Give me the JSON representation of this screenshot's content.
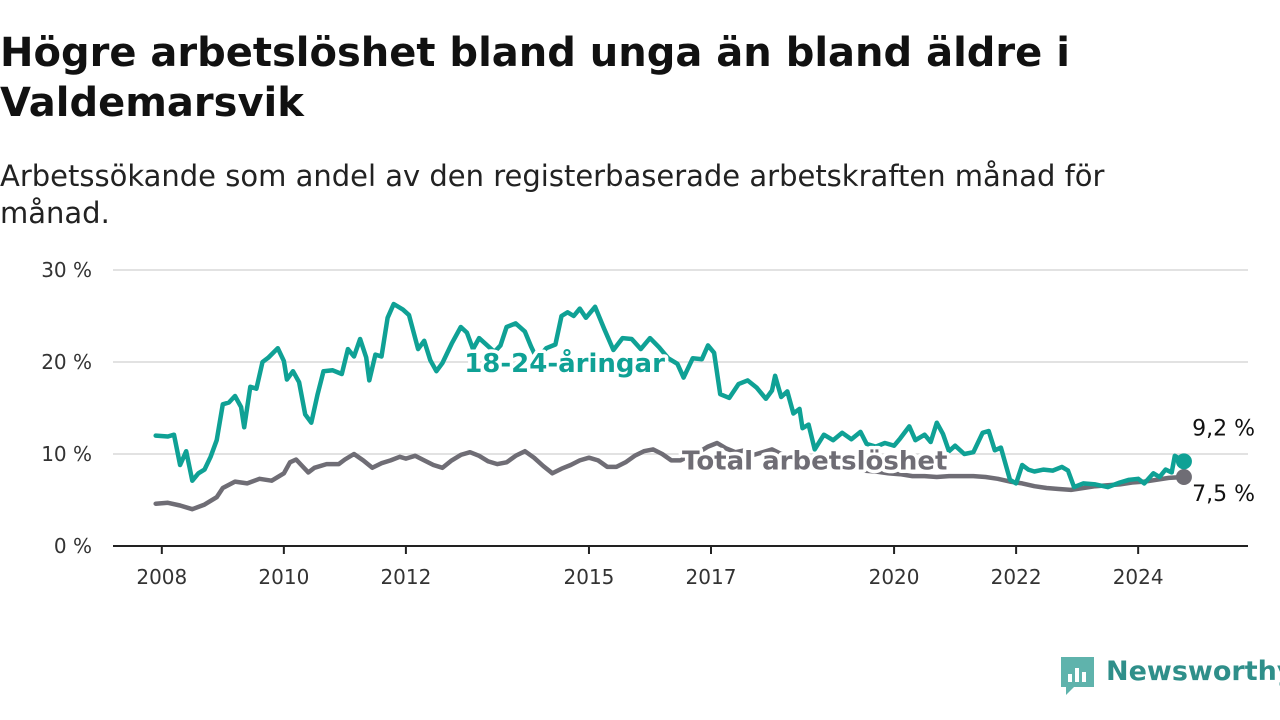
{
  "chart_data": {
    "type": "line",
    "title": "Högre arbetslöshet bland unga än bland äldre i Valdemarsvik",
    "subtitle": "Arbetssökande som andel av den registerbaserade arbetskraften månad för månad.",
    "y_ticks": [
      "0 %",
      "10 %",
      "20 %",
      "30 %"
    ],
    "y_tick_values": [
      0,
      10,
      20,
      30
    ],
    "ylim": [
      0,
      30
    ],
    "x_ticks": [
      "2008",
      "2010",
      "2012",
      "2015",
      "2017",
      "2020",
      "2022",
      "2024"
    ],
    "x_tick_values": [
      2008,
      2010,
      2012,
      2015,
      2017,
      2020,
      2022,
      2024
    ],
    "xlim": [
      2007.2,
      2025.8
    ],
    "grid": true,
    "series": [
      {
        "name": "18-24-åringar",
        "color": "#0fa195",
        "end_label": "9,2 %",
        "points": [
          [
            2007.9,
            12
          ],
          [
            2008.1,
            11.9
          ],
          [
            2008.2,
            12.1
          ],
          [
            2008.3,
            8.8
          ],
          [
            2008.4,
            10.3
          ],
          [
            2008.5,
            7.1
          ],
          [
            2008.6,
            7.9
          ],
          [
            2008.7,
            8.3
          ],
          [
            2008.8,
            9.7
          ],
          [
            2008.9,
            11.5
          ],
          [
            2009.0,
            15.4
          ],
          [
            2009.1,
            15.6
          ],
          [
            2009.2,
            16.3
          ],
          [
            2009.3,
            15.1
          ],
          [
            2009.35,
            12.9
          ],
          [
            2009.45,
            17.3
          ],
          [
            2009.55,
            17.1
          ],
          [
            2009.65,
            20.0
          ],
          [
            2009.75,
            20.5
          ],
          [
            2009.9,
            21.5
          ],
          [
            2010.0,
            20.1
          ],
          [
            2010.05,
            18.1
          ],
          [
            2010.15,
            19.0
          ],
          [
            2010.25,
            17.8
          ],
          [
            2010.35,
            14.3
          ],
          [
            2010.45,
            13.4
          ],
          [
            2010.55,
            16.4
          ],
          [
            2010.65,
            19.0
          ],
          [
            2010.8,
            19.1
          ],
          [
            2010.95,
            18.7
          ],
          [
            2011.05,
            21.4
          ],
          [
            2011.15,
            20.6
          ],
          [
            2011.25,
            22.5
          ],
          [
            2011.35,
            20.5
          ],
          [
            2011.4,
            18.0
          ],
          [
            2011.5,
            20.8
          ],
          [
            2011.6,
            20.6
          ],
          [
            2011.7,
            24.8
          ],
          [
            2011.8,
            26.3
          ],
          [
            2011.95,
            25.7
          ],
          [
            2012.05,
            25.1
          ],
          [
            2012.2,
            21.4
          ],
          [
            2012.3,
            22.3
          ],
          [
            2012.4,
            20.2
          ],
          [
            2012.5,
            19.0
          ],
          [
            2012.6,
            19.9
          ],
          [
            2012.75,
            22.0
          ],
          [
            2012.9,
            23.8
          ],
          [
            2013.0,
            23.2
          ],
          [
            2013.1,
            21.4
          ],
          [
            2013.2,
            22.6
          ],
          [
            2013.3,
            22.0
          ],
          [
            2013.45,
            21.1
          ],
          [
            2013.55,
            21.8
          ],
          [
            2013.65,
            23.8
          ],
          [
            2013.8,
            24.2
          ],
          [
            2013.95,
            23.3
          ],
          [
            2014.05,
            21.7
          ],
          [
            2014.15,
            20.3
          ],
          [
            2014.3,
            21.5
          ],
          [
            2014.45,
            21.9
          ],
          [
            2014.55,
            25.0
          ],
          [
            2014.65,
            25.4
          ],
          [
            2014.75,
            25.0
          ],
          [
            2014.85,
            25.8
          ],
          [
            2014.95,
            24.8
          ],
          [
            2015.1,
            26.0
          ],
          [
            2015.25,
            23.6
          ],
          [
            2015.4,
            21.3
          ],
          [
            2015.55,
            22.6
          ],
          [
            2015.7,
            22.5
          ],
          [
            2015.85,
            21.4
          ],
          [
            2016.0,
            22.6
          ],
          [
            2016.15,
            21.6
          ],
          [
            2016.3,
            20.4
          ],
          [
            2016.45,
            19.8
          ],
          [
            2016.55,
            18.3
          ],
          [
            2016.7,
            20.4
          ],
          [
            2016.85,
            20.3
          ],
          [
            2016.95,
            21.8
          ],
          [
            2017.05,
            21.0
          ],
          [
            2017.15,
            16.5
          ],
          [
            2017.3,
            16.1
          ],
          [
            2017.45,
            17.6
          ],
          [
            2017.6,
            18.0
          ],
          [
            2017.75,
            17.2
          ],
          [
            2017.9,
            16.0
          ],
          [
            2018.0,
            16.9
          ],
          [
            2018.05,
            18.5
          ],
          [
            2018.15,
            16.2
          ],
          [
            2018.25,
            16.8
          ],
          [
            2018.35,
            14.4
          ],
          [
            2018.45,
            14.9
          ],
          [
            2018.5,
            12.8
          ],
          [
            2018.6,
            13.2
          ],
          [
            2018.7,
            10.5
          ],
          [
            2018.85,
            12.1
          ],
          [
            2019.0,
            11.5
          ],
          [
            2019.15,
            12.3
          ],
          [
            2019.3,
            11.6
          ],
          [
            2019.45,
            12.4
          ],
          [
            2019.55,
            11.1
          ],
          [
            2019.7,
            10.8
          ],
          [
            2019.85,
            11.2
          ],
          [
            2020.0,
            10.9
          ],
          [
            2020.1,
            11.7
          ],
          [
            2020.25,
            13.0
          ],
          [
            2020.35,
            11.5
          ],
          [
            2020.5,
            12.1
          ],
          [
            2020.6,
            11.3
          ],
          [
            2020.7,
            13.4
          ],
          [
            2020.8,
            12.2
          ],
          [
            2020.9,
            10.3
          ],
          [
            2021.0,
            10.9
          ],
          [
            2021.15,
            10.0
          ],
          [
            2021.3,
            10.2
          ],
          [
            2021.45,
            12.3
          ],
          [
            2021.55,
            12.5
          ],
          [
            2021.65,
            10.4
          ],
          [
            2021.75,
            10.7
          ],
          [
            2021.9,
            7.2
          ],
          [
            2022.0,
            6.8
          ],
          [
            2022.1,
            8.8
          ],
          [
            2022.2,
            8.3
          ],
          [
            2022.3,
            8.1
          ],
          [
            2022.45,
            8.3
          ],
          [
            2022.6,
            8.2
          ],
          [
            2022.75,
            8.6
          ],
          [
            2022.85,
            8.2
          ],
          [
            2022.95,
            6.4
          ],
          [
            2023.1,
            6.8
          ],
          [
            2023.3,
            6.7
          ],
          [
            2023.5,
            6.4
          ],
          [
            2023.7,
            6.9
          ],
          [
            2023.85,
            7.2
          ],
          [
            2024.0,
            7.3
          ],
          [
            2024.1,
            6.8
          ],
          [
            2024.25,
            7.9
          ],
          [
            2024.35,
            7.5
          ],
          [
            2024.45,
            8.3
          ],
          [
            2024.55,
            8.0
          ],
          [
            2024.6,
            9.8
          ],
          [
            2024.75,
            9.2
          ]
        ]
      },
      {
        "name": "Total arbetslöshet",
        "color": "#6f6d75",
        "end_label": "7,5 %",
        "points": [
          [
            2007.9,
            4.6
          ],
          [
            2008.1,
            4.7
          ],
          [
            2008.3,
            4.4
          ],
          [
            2008.5,
            4.0
          ],
          [
            2008.7,
            4.5
          ],
          [
            2008.9,
            5.3
          ],
          [
            2009.0,
            6.3
          ],
          [
            2009.2,
            7.0
          ],
          [
            2009.4,
            6.8
          ],
          [
            2009.6,
            7.3
          ],
          [
            2009.8,
            7.1
          ],
          [
            2010.0,
            7.9
          ],
          [
            2010.1,
            9.1
          ],
          [
            2010.2,
            9.4
          ],
          [
            2010.3,
            8.7
          ],
          [
            2010.4,
            8.0
          ],
          [
            2010.5,
            8.5
          ],
          [
            2010.7,
            8.9
          ],
          [
            2010.9,
            8.9
          ],
          [
            2011.0,
            9.4
          ],
          [
            2011.15,
            10.0
          ],
          [
            2011.3,
            9.3
          ],
          [
            2011.45,
            8.5
          ],
          [
            2011.6,
            9.0
          ],
          [
            2011.75,
            9.3
          ],
          [
            2011.9,
            9.7
          ],
          [
            2012.0,
            9.5
          ],
          [
            2012.15,
            9.8
          ],
          [
            2012.3,
            9.3
          ],
          [
            2012.45,
            8.8
          ],
          [
            2012.6,
            8.5
          ],
          [
            2012.75,
            9.3
          ],
          [
            2012.9,
            9.9
          ],
          [
            2013.05,
            10.2
          ],
          [
            2013.2,
            9.8
          ],
          [
            2013.35,
            9.2
          ],
          [
            2013.5,
            8.9
          ],
          [
            2013.65,
            9.1
          ],
          [
            2013.8,
            9.8
          ],
          [
            2013.95,
            10.3
          ],
          [
            2014.1,
            9.6
          ],
          [
            2014.25,
            8.7
          ],
          [
            2014.4,
            7.9
          ],
          [
            2014.55,
            8.4
          ],
          [
            2014.7,
            8.8
          ],
          [
            2014.85,
            9.3
          ],
          [
            2015.0,
            9.6
          ],
          [
            2015.15,
            9.3
          ],
          [
            2015.3,
            8.6
          ],
          [
            2015.45,
            8.6
          ],
          [
            2015.6,
            9.1
          ],
          [
            2015.75,
            9.8
          ],
          [
            2015.9,
            10.3
          ],
          [
            2016.05,
            10.5
          ],
          [
            2016.2,
            10.0
          ],
          [
            2016.35,
            9.3
          ],
          [
            2016.5,
            9.3
          ],
          [
            2016.65,
            9.8
          ],
          [
            2016.8,
            10.2
          ],
          [
            2016.95,
            10.8
          ],
          [
            2017.1,
            11.2
          ],
          [
            2017.25,
            10.6
          ],
          [
            2017.4,
            10.2
          ],
          [
            2017.55,
            10.4
          ],
          [
            2017.7,
            9.9
          ],
          [
            2017.85,
            10.2
          ],
          [
            2018.0,
            10.5
          ],
          [
            2018.15,
            10.0
          ],
          [
            2018.3,
            9.8
          ],
          [
            2018.45,
            9.3
          ],
          [
            2018.6,
            9.0
          ],
          [
            2018.75,
            9.0
          ],
          [
            2018.9,
            9.3
          ],
          [
            2019.1,
            9.0
          ],
          [
            2019.3,
            8.6
          ],
          [
            2019.5,
            8.2
          ],
          [
            2019.7,
            8.1
          ],
          [
            2019.9,
            7.9
          ],
          [
            2020.1,
            7.8
          ],
          [
            2020.3,
            7.6
          ],
          [
            2020.5,
            7.6
          ],
          [
            2020.7,
            7.5
          ],
          [
            2020.9,
            7.6
          ],
          [
            2021.1,
            7.6
          ],
          [
            2021.3,
            7.6
          ],
          [
            2021.5,
            7.5
          ],
          [
            2021.7,
            7.3
          ],
          [
            2021.9,
            7.0
          ],
          [
            2022.1,
            6.8
          ],
          [
            2022.3,
            6.5
          ],
          [
            2022.5,
            6.3
          ],
          [
            2022.7,
            6.2
          ],
          [
            2022.9,
            6.1
          ],
          [
            2023.1,
            6.3
          ],
          [
            2023.3,
            6.5
          ],
          [
            2023.5,
            6.6
          ],
          [
            2023.7,
            6.7
          ],
          [
            2023.9,
            6.9
          ],
          [
            2024.1,
            7.0
          ],
          [
            2024.3,
            7.2
          ],
          [
            2024.5,
            7.4
          ],
          [
            2024.75,
            7.5
          ]
        ]
      }
    ],
    "series_label_anchors": [
      {
        "series": 0,
        "x": 2014.6,
        "y": 18.9
      },
      {
        "series": 1,
        "x": 2018.7,
        "y": 8.3
      }
    ],
    "end_label_anchors": [
      {
        "series": 0,
        "x": 2025.4,
        "y": 12.0
      },
      {
        "series": 1,
        "x": 2025.4,
        "y": 4.9
      }
    ]
  },
  "logo": {
    "text": "Newsworthy",
    "color": "#2f8f8a"
  }
}
